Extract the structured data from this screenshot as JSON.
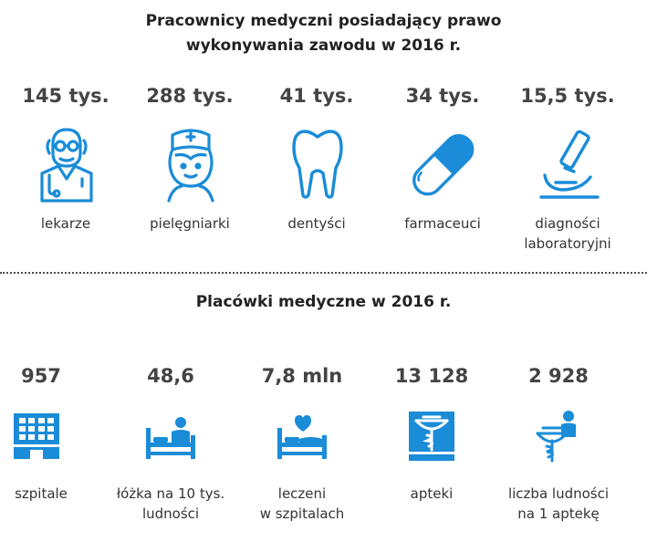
{
  "section1": {
    "title_line1": "Pracownicy medyczni posiadający prawo",
    "title_line2": "wykonywania zawodu w 2016 r.",
    "items": [
      {
        "value": "145 tys.",
        "label_line1": "lekarze",
        "label_line2": "",
        "icon": "doctor-icon"
      },
      {
        "value": "288 tys.",
        "label_line1": "pielęgniarki",
        "label_line2": "",
        "icon": "nurse-icon"
      },
      {
        "value": "41 tys.",
        "label_line1": "dentyści",
        "label_line2": "",
        "icon": "tooth-icon"
      },
      {
        "value": "34 tys.",
        "label_line1": "farmaceuci",
        "label_line2": "",
        "icon": "pill-capsule-icon"
      },
      {
        "value": "15,5 tys.",
        "label_line1": "diagności",
        "label_line2": "laboratoryjni",
        "icon": "microscope-icon"
      }
    ]
  },
  "section2": {
    "title": "Placówki medyczne w 2016 r.",
    "items": [
      {
        "value": "957",
        "label_line1": "szpitale",
        "label_line2": "",
        "icon": "hospital-building-icon"
      },
      {
        "value": "48,6",
        "label_line1": "łóżka na 10 tys.",
        "label_line2": "ludności",
        "icon": "hospital-bed-icon"
      },
      {
        "value": "7,8 mln",
        "label_line1": "leczeni",
        "label_line2": "w szpitalach",
        "icon": "bed-heart-icon"
      },
      {
        "value": "13 128",
        "label_line1": "apteki",
        "label_line2": "",
        "icon": "pharmacy-icon"
      },
      {
        "value": "2 928",
        "label_line1": "liczba ludności",
        "label_line2": "na 1 aptekę",
        "icon": "person-pharmacy-symbol-icon"
      }
    ]
  },
  "colors": {
    "icon_blue": "#1a8cd8",
    "text_dark": "#333333"
  }
}
